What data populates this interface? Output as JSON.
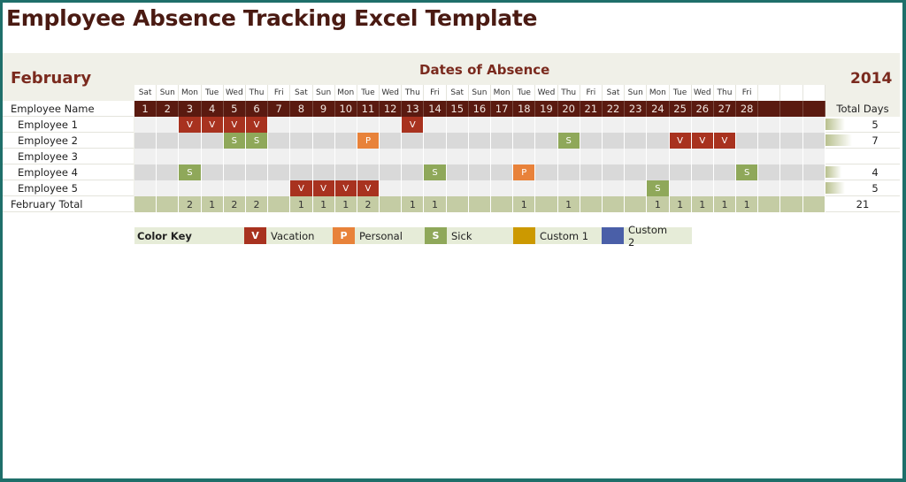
{
  "title": "Employee Absence Tracking Excel Template",
  "header": {
    "month": "February",
    "year": "2014",
    "section_title": "Dates of Absence"
  },
  "grid": {
    "name_header": "Employee Name",
    "total_days_header": "Total Days",
    "total_row_label": "February Total",
    "days_of_week": [
      "Sat",
      "Sun",
      "Mon",
      "Tue",
      "Wed",
      "Thu",
      "Fri",
      "Sat",
      "Sun",
      "Mon",
      "Tue",
      "Wed",
      "Thu",
      "Fri",
      "Sat",
      "Sun",
      "Mon",
      "Tue",
      "Wed",
      "Thu",
      "Fri",
      "Sat",
      "Sun",
      "Mon",
      "Tue",
      "Wed",
      "Thu",
      "Fri",
      "",
      "",
      ""
    ],
    "dates": [
      "1",
      "2",
      "3",
      "4",
      "5",
      "6",
      "7",
      "8",
      "9",
      "10",
      "11",
      "12",
      "13",
      "14",
      "15",
      "16",
      "17",
      "18",
      "19",
      "20",
      "21",
      "22",
      "23",
      "24",
      "25",
      "26",
      "27",
      "28",
      "",
      "",
      ""
    ],
    "employees": [
      {
        "name": "Employee 1",
        "total": "5",
        "bar": 22,
        "absences": {
          "3": "V",
          "4": "V",
          "5": "V",
          "6": "V",
          "13": "V"
        }
      },
      {
        "name": "Employee 2",
        "total": "7",
        "bar": 30,
        "absences": {
          "5": "S",
          "6": "S",
          "11": "P",
          "20": "S",
          "25": "V",
          "26": "V",
          "27": "V"
        }
      },
      {
        "name": "Employee 3",
        "total": "",
        "bar": 0,
        "absences": {}
      },
      {
        "name": "Employee 4",
        "total": "4",
        "bar": 18,
        "absences": {
          "3": "S",
          "14": "S",
          "18": "P",
          "28": "S"
        }
      },
      {
        "name": "Employee 5",
        "total": "5",
        "bar": 22,
        "absences": {
          "8": "V",
          "9": "V",
          "10": "V",
          "11": "V",
          "24": "S"
        }
      }
    ],
    "daily_totals": [
      "",
      "",
      "2",
      "1",
      "2",
      "2",
      "",
      "1",
      "1",
      "1",
      "2",
      "",
      "1",
      "1",
      "",
      "",
      "",
      "1",
      "",
      "1",
      "",
      "",
      "",
      "1",
      "1",
      "1",
      "1",
      "1",
      "",
      "",
      ""
    ],
    "grand_total": "21"
  },
  "color_key": {
    "label": "Color Key",
    "items": [
      {
        "code": "V",
        "label": "Vacation",
        "color": "#a8321f"
      },
      {
        "code": "P",
        "label": "Personal",
        "color": "#e8823a"
      },
      {
        "code": "S",
        "label": "Sick",
        "color": "#8fa85a"
      },
      {
        "code": "",
        "label": "Custom 1",
        "color": "#cc9900"
      },
      {
        "code": "",
        "label": "Custom 2",
        "color": "#4a5fa8"
      }
    ]
  }
}
